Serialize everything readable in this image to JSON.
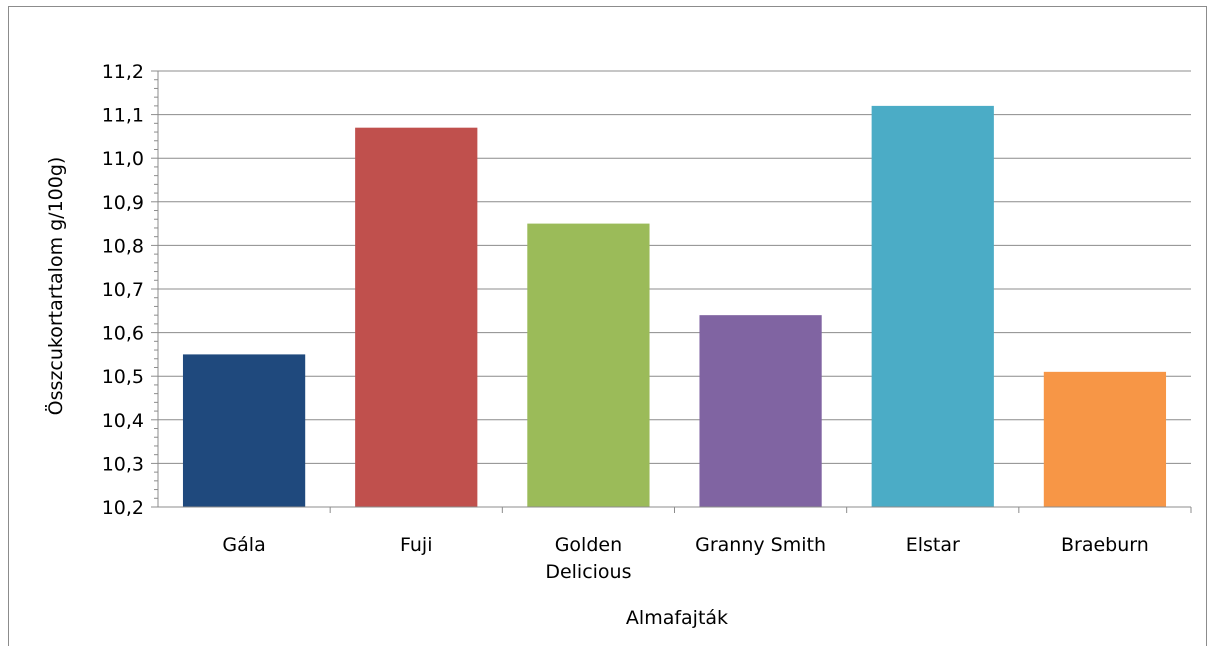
{
  "chart_data": {
    "type": "bar",
    "title": "",
    "xlabel": "Almafajták",
    "ylabel": "Összcukortartalom g/100g)",
    "categories": [
      "Gála",
      "Fuji",
      "Golden Delicious",
      "Granny Smith",
      "Elstar",
      "Braeburn"
    ],
    "category_lines": [
      [
        "Gála"
      ],
      [
        "Fuji"
      ],
      [
        "Golden",
        "Delicious"
      ],
      [
        "Granny Smith"
      ],
      [
        "Elstar"
      ],
      [
        "Braeburn"
      ]
    ],
    "values": [
      10.55,
      11.07,
      10.85,
      10.64,
      11.12,
      10.51
    ],
    "colors": [
      "#1f497d",
      "#c0504d",
      "#9bbb59",
      "#8064a2",
      "#4bacc6",
      "#f79646"
    ],
    "ylim": [
      10.2,
      11.2
    ],
    "yticks": [
      "10,2",
      "10,3",
      "10,4",
      "10,5",
      "10,6",
      "10,7",
      "10,8",
      "10,9",
      "11,0",
      "11,1",
      "11,2"
    ],
    "grid": true,
    "legend": "none"
  }
}
